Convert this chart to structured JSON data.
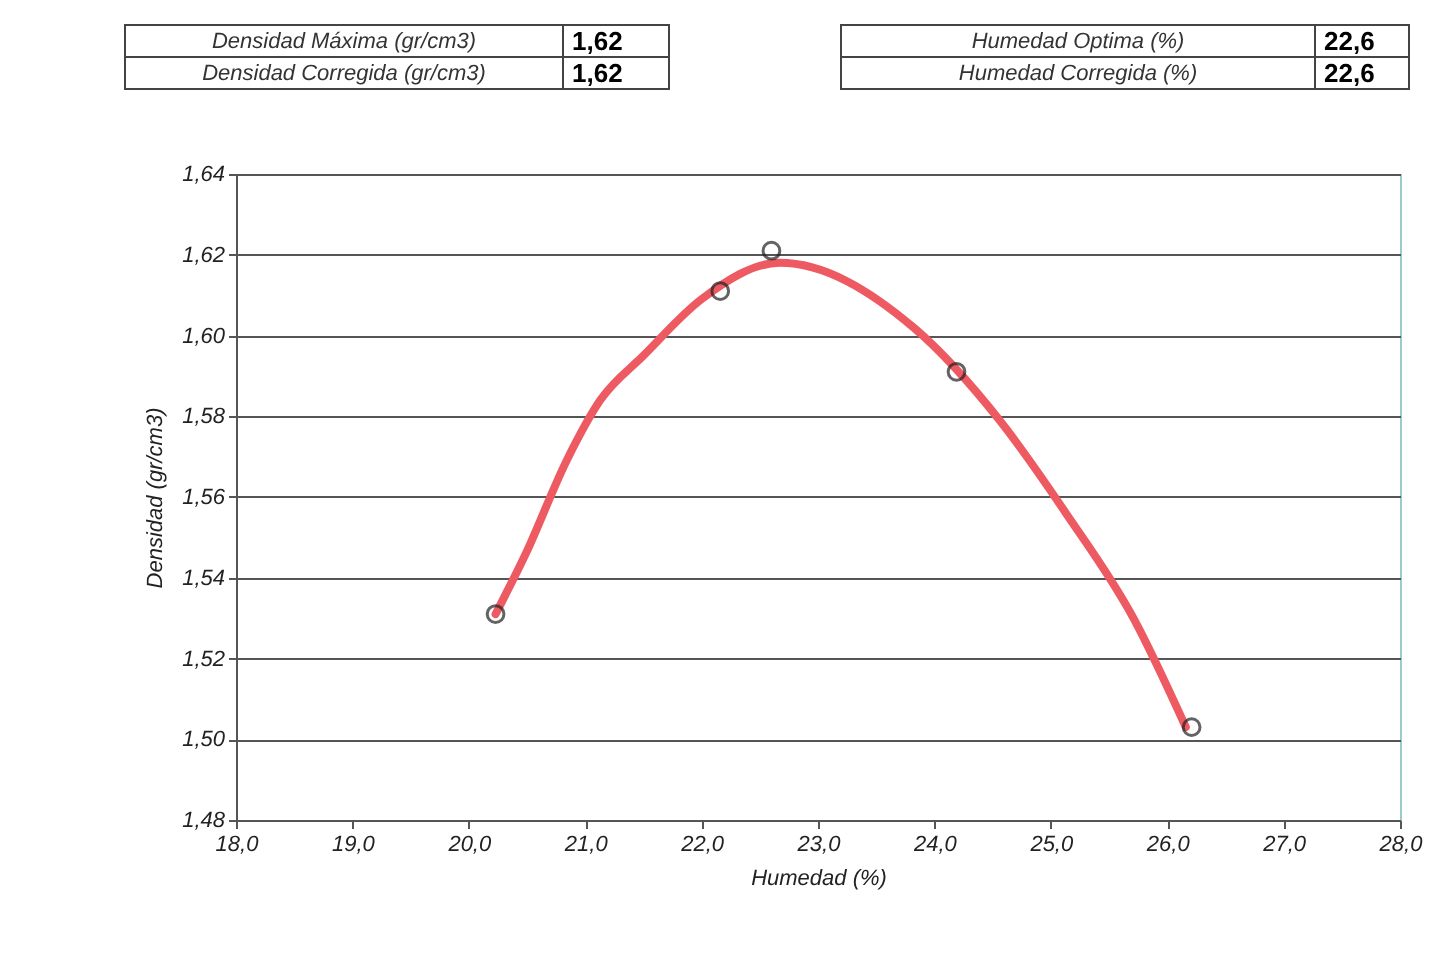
{
  "chart_data": {
    "type": "scatter",
    "xlabel": "Humedad (%)",
    "ylabel": "Densidad (gr/cm3)",
    "annotations": [
      "Densidad Máxima (gr/cm3)",
      "1,62",
      "Densidad Corregida (gr/cm3)",
      "1,62",
      "Humedad Optima (%)",
      "22,6",
      "Humedad Corregida (%)",
      "22,6"
    ],
    "series": [
      {
        "type": "line",
        "color": "#ee5a62",
        "x": [
          20.23,
          20.49,
          20.84,
          21.13,
          21.5,
          22.0,
          22.67,
          23.82,
          24.56,
          25.13,
          25.71,
          26.16
        ],
        "values": [
          1.531,
          1.546,
          1.569,
          1.584,
          1.595,
          1.609,
          1.618,
          1.602,
          1.579,
          1.556,
          1.53,
          1.503
        ]
      },
      {
        "type": "scatter",
        "color": "#222222",
        "marker": "circle",
        "x": [
          20.23,
          22.16,
          22.6,
          24.19,
          26.21
        ],
        "values": [
          1.531,
          1.611,
          1.621,
          1.591,
          1.503
        ]
      }
    ],
    "xlim": [
      18,
      28
    ],
    "ylim": [
      1.48,
      1.64
    ],
    "xticks": [
      {
        "value": 18,
        "label": "18,0"
      },
      {
        "value": 19,
        "label": "19,0"
      },
      {
        "value": 20,
        "label": "20,0"
      },
      {
        "value": 21,
        "label": "21,0"
      },
      {
        "value": 22,
        "label": "22,0"
      },
      {
        "value": 23,
        "label": "23,0"
      },
      {
        "value": 24,
        "label": "24,0"
      },
      {
        "value": 25,
        "label": "25,0"
      },
      {
        "value": 26,
        "label": "26,0"
      },
      {
        "value": 27,
        "label": "27,0"
      },
      {
        "value": 28,
        "label": "28,0"
      }
    ],
    "yticks": [
      {
        "value": 1.48,
        "label": "1,48"
      },
      {
        "value": 1.5,
        "label": "1,50"
      },
      {
        "value": 1.52,
        "label": "1,52"
      },
      {
        "value": 1.54,
        "label": "1,54"
      },
      {
        "value": 1.56,
        "label": "1,56"
      },
      {
        "value": 1.58,
        "label": "1,58"
      },
      {
        "value": 1.6,
        "label": "1,60"
      },
      {
        "value": 1.62,
        "label": "1,62"
      },
      {
        "value": 1.64,
        "label": "1,64"
      }
    ],
    "grid": "y"
  }
}
